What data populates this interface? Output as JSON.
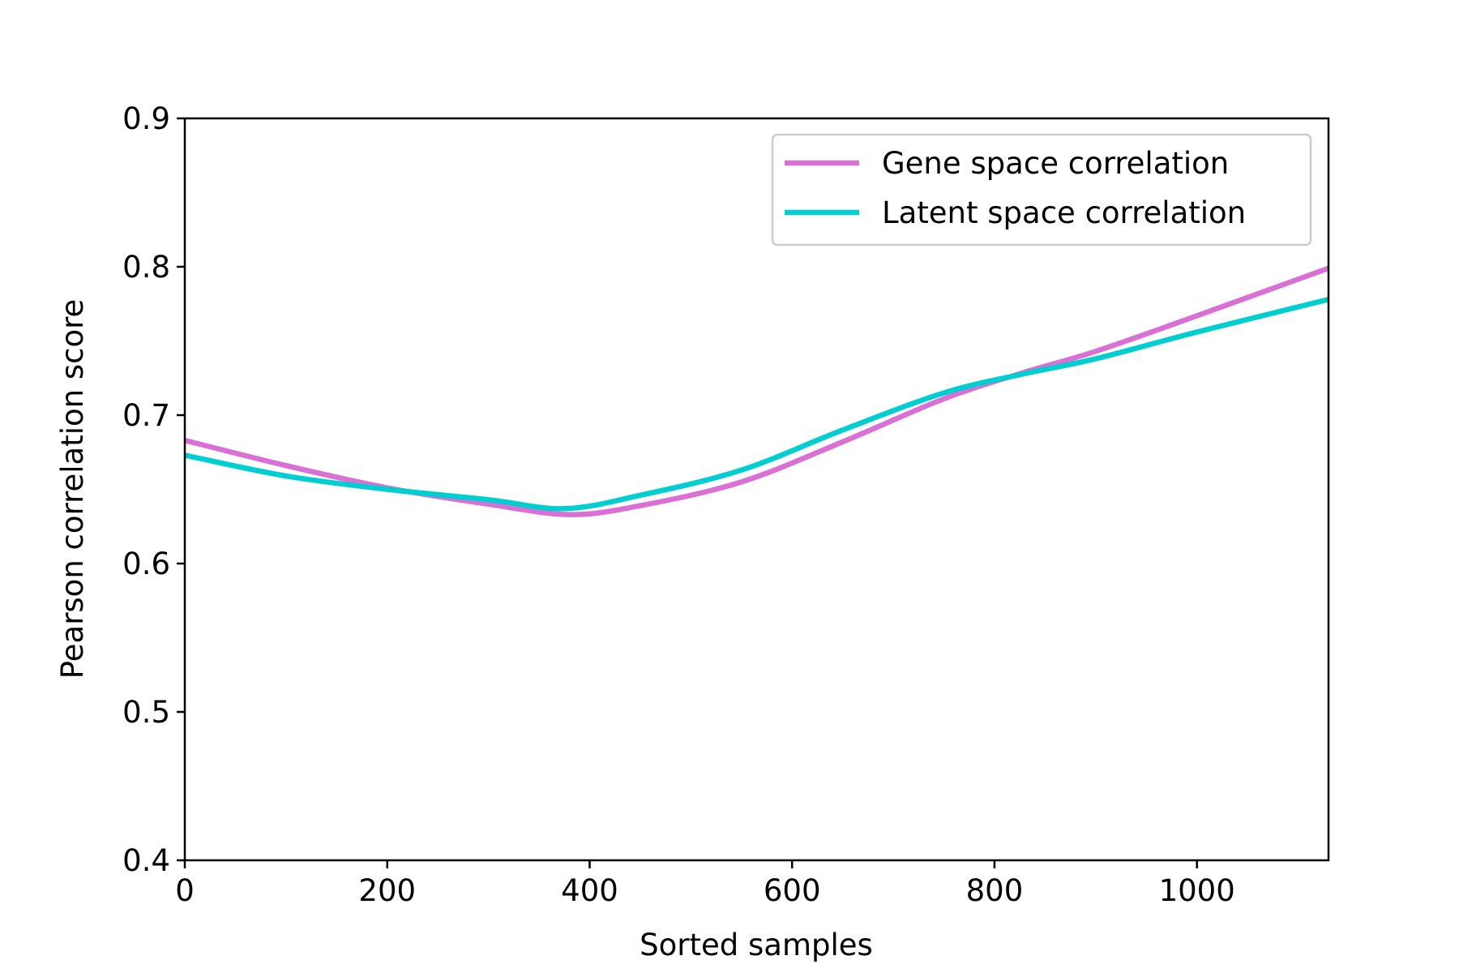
{
  "chart_data": {
    "type": "line",
    "title": "",
    "xlabel": "Sorted samples",
    "ylabel": "Pearson correlation score",
    "xlim": [
      0,
      1130
    ],
    "ylim": [
      0.4,
      0.9
    ],
    "x_ticks": [
      "0",
      "200",
      "400",
      "600",
      "800",
      "1000"
    ],
    "y_ticks": [
      "0.4",
      "0.5",
      "0.6",
      "0.7",
      "0.8",
      "0.9"
    ],
    "grid": false,
    "legend_position": "top-right",
    "series": [
      {
        "name": "Gene space correlation",
        "color": "#da70d6",
        "points": [
          [
            0,
            0.683
          ],
          [
            100,
            0.666
          ],
          [
            200,
            0.651
          ],
          [
            300,
            0.64
          ],
          [
            380,
            0.633
          ],
          [
            450,
            0.639
          ],
          [
            550,
            0.655
          ],
          [
            650,
            0.682
          ],
          [
            750,
            0.711
          ],
          [
            830,
            0.729
          ],
          [
            900,
            0.743
          ],
          [
            1000,
            0.767
          ],
          [
            1130,
            0.799
          ]
        ]
      },
      {
        "name": "Latent space correlation",
        "color": "#00ced1",
        "points": [
          [
            0,
            0.673
          ],
          [
            100,
            0.659
          ],
          [
            200,
            0.65
          ],
          [
            300,
            0.643
          ],
          [
            375,
            0.637
          ],
          [
            450,
            0.646
          ],
          [
            550,
            0.663
          ],
          [
            650,
            0.69
          ],
          [
            750,
            0.715
          ],
          [
            830,
            0.728
          ],
          [
            900,
            0.738
          ],
          [
            1000,
            0.756
          ],
          [
            1130,
            0.778
          ]
        ]
      }
    ]
  }
}
